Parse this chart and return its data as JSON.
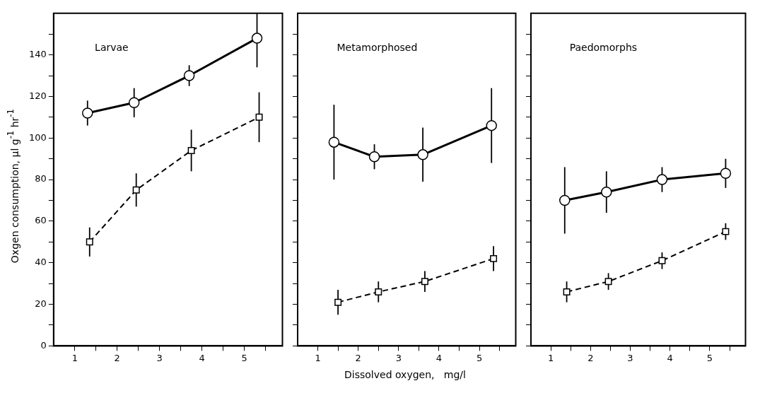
{
  "chart_data": [
    {
      "type": "line",
      "title": "Larvae",
      "ylabel": "Oxgen consumption,  μl g$^{-1}$ hr$^{-1}$",
      "xlim": [
        0.5,
        5.9
      ],
      "xticks": [
        1,
        {
          "value": 1.5,
          "label": null
        },
        2,
        {
          "value": 2.5,
          "label": null
        },
        3,
        {
          "value": 3.5,
          "label": null
        },
        4,
        {
          "value": 4.5,
          "label": null
        },
        5,
        {
          "value": 5.5,
          "label": null
        }
      ],
      "ylim": [
        0,
        160
      ],
      "yticks": [
        0,
        {
          "value": 10,
          "label": null
        },
        20,
        {
          "value": 30,
          "label": null
        },
        40,
        {
          "value": 50,
          "label": null
        },
        60,
        {
          "value": 70,
          "label": null
        },
        80,
        {
          "value": 90,
          "label": null
        },
        100,
        {
          "value": 110,
          "label": null
        },
        120,
        {
          "value": 130,
          "label": null
        },
        140,
        {
          "value": 150,
          "label": null
        }
      ],
      "grid": false,
      "legend": false,
      "series": [
        {
          "color": "#000000",
          "marker": "circle",
          "line_style": "solid",
          "x": [
            1.3,
            2.4,
            3.7,
            5.3
          ],
          "values": [
            112,
            117,
            130,
            148
          ],
          "errors": [
            6,
            7,
            5,
            [
              134,
              160
            ]
          ]
        },
        {
          "color": "#000000",
          "marker": "square",
          "line_style": "dashed",
          "x": [
            1.35,
            2.45,
            3.75,
            5.35
          ],
          "values": [
            50,
            75,
            94,
            110
          ],
          "errors": [
            7,
            8,
            10,
            12
          ]
        }
      ]
    },
    {
      "type": "line",
      "title": "Metamorphosed",
      "xlabel": "Dissolved oxygen,   mg/l",
      "tick_labels": "x",
      "xlim": [
        0.5,
        5.9
      ],
      "xticks": [
        1,
        {
          "value": 1.5,
          "label": null
        },
        2,
        {
          "value": 2.5,
          "label": null
        },
        3,
        {
          "value": 3.5,
          "label": null
        },
        4,
        {
          "value": 4.5,
          "label": null
        },
        5,
        {
          "value": 5.5,
          "label": null
        }
      ],
      "ylim": [
        0,
        160
      ],
      "yticks": [
        0,
        {
          "value": 10,
          "label": null
        },
        20,
        {
          "value": 30,
          "label": null
        },
        40,
        {
          "value": 50,
          "label": null
        },
        60,
        {
          "value": 70,
          "label": null
        },
        80,
        {
          "value": 90,
          "label": null
        },
        100,
        {
          "value": 110,
          "label": null
        },
        120,
        {
          "value": 130,
          "label": null
        },
        140,
        {
          "value": 150,
          "label": null
        }
      ],
      "grid": false,
      "legend": false,
      "series": [
        {
          "color": "#000000",
          "marker": "circle",
          "line_style": "solid",
          "x": [
            1.4,
            2.4,
            3.6,
            5.3
          ],
          "values": [
            98,
            91,
            92,
            106
          ],
          "errors": [
            18,
            6,
            13,
            18
          ]
        },
        {
          "color": "#000000",
          "marker": "square",
          "line_style": "dashed",
          "x": [
            1.5,
            2.5,
            3.65,
            5.35
          ],
          "values": [
            21,
            26,
            31,
            42
          ],
          "errors": [
            6,
            5,
            5,
            6
          ]
        }
      ]
    },
    {
      "type": "line",
      "title": "Paedomorphs",
      "tick_labels": "x",
      "xlim": [
        0.5,
        5.9
      ],
      "xticks": [
        1,
        {
          "value": 1.5,
          "label": null
        },
        2,
        {
          "value": 2.5,
          "label": null
        },
        3,
        {
          "value": 3.5,
          "label": null
        },
        4,
        {
          "value": 4.5,
          "label": null
        },
        5,
        {
          "value": 5.5,
          "label": null
        }
      ],
      "ylim": [
        0,
        160
      ],
      "yticks": [
        0,
        {
          "value": 10,
          "label": null
        },
        20,
        {
          "value": 30,
          "label": null
        },
        40,
        {
          "value": 50,
          "label": null
        },
        60,
        {
          "value": 70,
          "label": null
        },
        80,
        {
          "value": 90,
          "label": null
        },
        100,
        {
          "value": 110,
          "label": null
        },
        120,
        {
          "value": 130,
          "label": null
        },
        140,
        {
          "value": 150,
          "label": null
        }
      ],
      "grid": false,
      "legend": false,
      "series": [
        {
          "color": "#000000",
          "marker": "circle",
          "line_style": "solid",
          "x": [
            1.35,
            2.4,
            3.8,
            5.4
          ],
          "values": [
            70,
            74,
            80,
            83
          ],
          "errors": [
            16,
            10,
            6,
            7
          ]
        },
        {
          "color": "#000000",
          "marker": "square",
          "line_style": "dashed",
          "x": [
            1.4,
            2.45,
            3.8,
            5.4
          ],
          "values": [
            26,
            31,
            41,
            55
          ],
          "errors": [
            5,
            4,
            4,
            4
          ]
        }
      ]
    }
  ]
}
